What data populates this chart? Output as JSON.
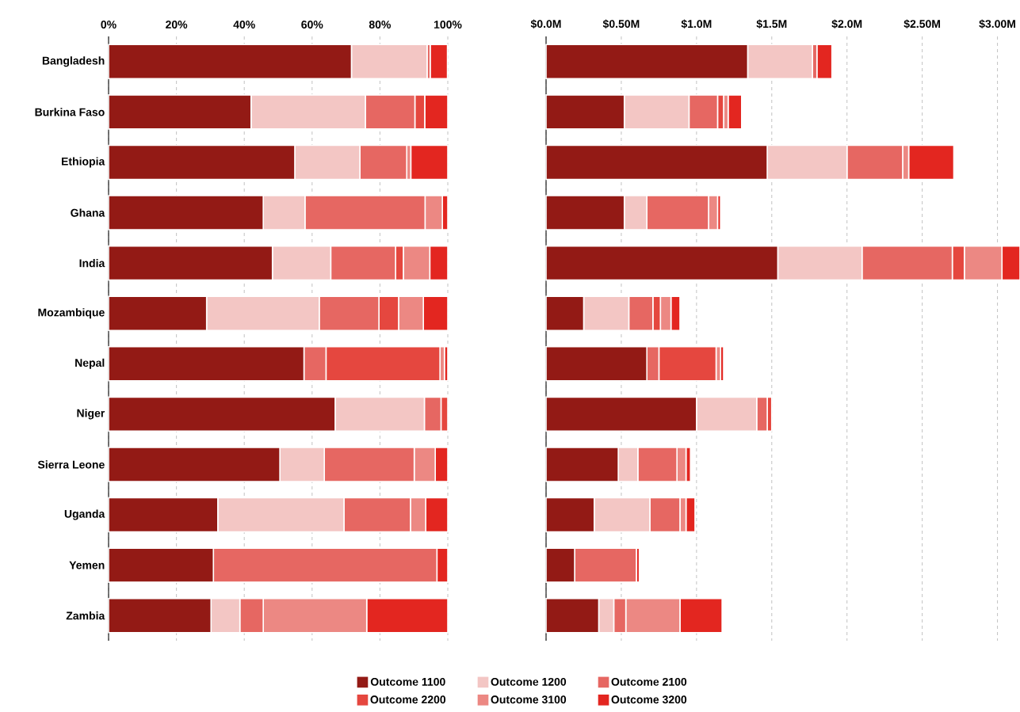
{
  "chart_data": [
    {
      "type": "bar",
      "orientation": "horizontal",
      "stacked": true,
      "grid": "x",
      "legend": "bottom",
      "categories": [
        "Bangladesh",
        "Burkina Faso",
        "Ethiopia",
        "Ghana",
        "India",
        "Mozambique",
        "Nepal",
        "Niger",
        "Sierra Leone",
        "Uganda",
        "Yemen",
        "Zambia"
      ],
      "xlim": [
        0,
        100
      ],
      "xticks": [
        {
          "value": 0,
          "label": "0%"
        },
        {
          "value": 20,
          "label": "20%"
        },
        {
          "value": 40,
          "label": "40%"
        },
        {
          "value": 60,
          "label": "60%"
        },
        {
          "value": 80,
          "label": "80%"
        },
        {
          "value": 100,
          "label": "100%"
        }
      ],
      "series": [
        {
          "name": "Outcome 1100",
          "color": "#931a15",
          "values": [
            71.6,
            42.0,
            54.9,
            45.6,
            48.3,
            28.9,
            57.6,
            66.8,
            50.5,
            32.2,
            30.9,
            30.2
          ]
        },
        {
          "name": "Outcome 1200",
          "color": "#f3c6c4",
          "values": [
            22.3,
            33.7,
            19.2,
            12.3,
            17.2,
            33.2,
            0,
            26.3,
            13.1,
            37.2,
            0,
            8.5
          ]
        },
        {
          "name": "Outcome 2100",
          "color": "#e66762",
          "values": [
            0.9,
            14.6,
            13.8,
            35.4,
            19.1,
            17.6,
            6.5,
            4.9,
            26.5,
            19.6,
            65.9,
            6.9
          ]
        },
        {
          "name": "Outcome 2200",
          "color": "#e5473f",
          "values": [
            0,
            2.9,
            0,
            0,
            2.3,
            5.8,
            33.6,
            2.0,
            0,
            0,
            0,
            0
          ]
        },
        {
          "name": "Outcome 3100",
          "color": "#ec8883",
          "values": [
            0,
            0,
            1.2,
            5.1,
            7.8,
            7.3,
            1.3,
            0,
            6.2,
            4.5,
            0,
            30.5
          ]
        },
        {
          "name": "Outcome 3200",
          "color": "#e32620",
          "values": [
            5.1,
            6.8,
            10.9,
            1.6,
            5.3,
            7.2,
            1.0,
            0,
            3.7,
            6.5,
            3.2,
            23.9
          ]
        }
      ]
    },
    {
      "type": "bar",
      "orientation": "horizontal",
      "stacked": true,
      "grid": "x",
      "tick_labels": "x",
      "categories": [
        null,
        null,
        null,
        null,
        null,
        null,
        null,
        null,
        null,
        null,
        null,
        null
      ],
      "xlim": [
        0,
        3.15
      ],
      "xticks": [
        {
          "value": 0,
          "label": "$0.0M"
        },
        {
          "value": 0.5,
          "label": "$0.50M"
        },
        {
          "value": 1.0,
          "label": "$1.0M"
        },
        {
          "value": 1.5,
          "label": "$1.5M"
        },
        {
          "value": 2.0,
          "label": "$2.0M"
        },
        {
          "value": 2.5,
          "label": "$2.50M"
        },
        {
          "value": 3.0,
          "label": "$3.00M"
        }
      ],
      "series": [
        {
          "color": "#931a15",
          "values": [
            1.34,
            0.52,
            1.47,
            0.52,
            1.54,
            0.25,
            0.67,
            1.0,
            0.48,
            0.32,
            0.19,
            0.35
          ]
        },
        {
          "color": "#f3c6c4",
          "values": [
            0.43,
            0.43,
            0.53,
            0.15,
            0.56,
            0.3,
            0,
            0.4,
            0.13,
            0.37,
            0,
            0.1
          ]
        },
        {
          "color": "#e66762",
          "values": [
            0.03,
            0.19,
            0.37,
            0.41,
            0.6,
            0.16,
            0.08,
            0.07,
            0.26,
            0.2,
            0.41,
            0.08
          ]
        },
        {
          "color": "#e5473f",
          "values": [
            0,
            0.04,
            0,
            0,
            0.08,
            0.05,
            0.38,
            0.03,
            0,
            0,
            0,
            0
          ]
        },
        {
          "color": "#ec8883",
          "values": [
            0,
            0.03,
            0.04,
            0.06,
            0.25,
            0.07,
            0.03,
            0,
            0.06,
            0.04,
            0,
            0.36
          ]
        },
        {
          "color": "#e32620",
          "values": [
            0.1,
            0.09,
            0.3,
            0.02,
            0.12,
            0.06,
            0.02,
            0,
            0.03,
            0.06,
            0.02,
            0.28
          ]
        }
      ]
    }
  ]
}
